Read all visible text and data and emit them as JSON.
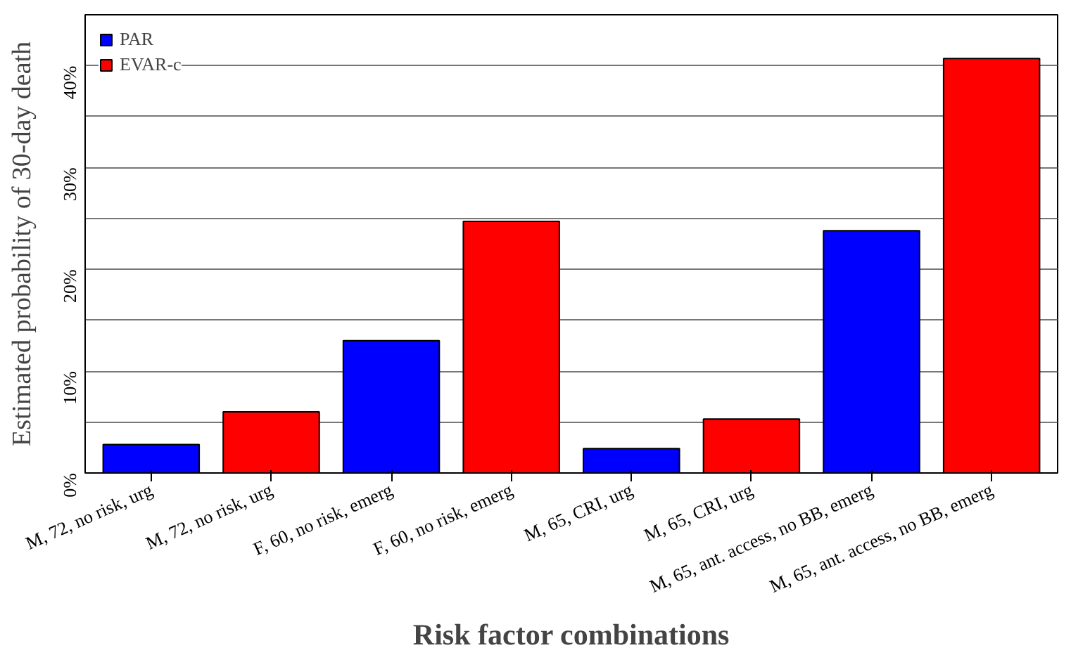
{
  "chart_data": {
    "type": "bar",
    "xlabel": "Risk factor combinations",
    "ylabel": "Estimated probability of 30-day death",
    "categories": [
      "M, 72, no risk, urg",
      "M, 72, no risk, urg",
      "F, 60, no risk, emerg",
      "F, 60, no risk, emerg",
      "M, 65, CRI, urg",
      "M, 65, CRI, urg",
      "M, 65, ant. access, no BB, emerg",
      "M, 65, ant. access, no BB, emerg"
    ],
    "series": [
      {
        "name": "PAR",
        "color": "#0000ff",
        "values": [
          2.8,
          null,
          13.0,
          null,
          2.4,
          null,
          23.8,
          null
        ]
      },
      {
        "name": "EVAR-c",
        "color": "#ff0000",
        "values": [
          null,
          6.0,
          null,
          24.7,
          null,
          5.3,
          null,
          40.7
        ]
      }
    ],
    "ylim": [
      0,
      45
    ],
    "yticks": [
      {
        "value": 0,
        "label": "0%"
      },
      {
        "value": 5,
        "label": null
      },
      {
        "value": 10,
        "label": "10%"
      },
      {
        "value": 15,
        "label": null
      },
      {
        "value": 20,
        "label": "20%"
      },
      {
        "value": 25,
        "label": null
      },
      {
        "value": 30,
        "label": "30%"
      },
      {
        "value": 35,
        "label": null
      },
      {
        "value": 40,
        "label": "40%"
      }
    ],
    "grid": "y",
    "legend": "top left"
  }
}
